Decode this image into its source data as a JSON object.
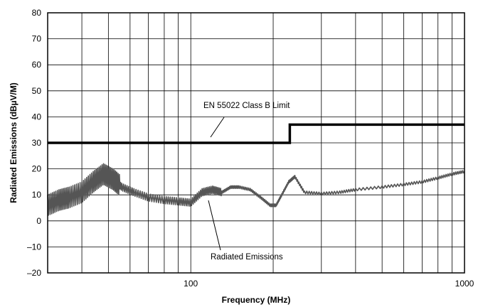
{
  "chart_data": {
    "type": "line",
    "title": "",
    "xlabel": "Frequency (MHz)",
    "ylabel": "Radiated Emissions (dBµV/M)",
    "x_scale": "log",
    "xlim": [
      30,
      1000
    ],
    "ylim": [
      -20,
      80
    ],
    "grid": true,
    "x_tick_labels": [
      "100",
      "1000"
    ],
    "x_ticks": [
      100,
      1000
    ],
    "y_ticks": [
      -20,
      -10,
      0,
      10,
      20,
      30,
      40,
      50,
      60,
      70,
      80
    ],
    "y_tick_labels": [
      "–20",
      "–10",
      "0",
      "10",
      "20",
      "30",
      "40",
      "50",
      "60",
      "70",
      "80"
    ],
    "series": [
      {
        "name": "EN 55022 Class B Limit",
        "color": "#000000",
        "x": [
          30,
          230,
          230,
          1000
        ],
        "y": [
          30,
          30,
          37,
          37
        ]
      },
      {
        "name": "Radiated Emissions",
        "color": "#555555",
        "x": [
          30,
          33,
          36,
          40,
          44,
          48,
          52,
          56,
          62,
          70,
          80,
          90,
          100,
          110,
          120,
          130,
          140,
          150,
          165,
          180,
          195,
          205,
          215,
          228,
          240,
          260,
          300,
          350,
          400,
          500,
          600,
          700,
          800,
          900,
          1000
        ],
        "y": [
          6,
          8,
          9,
          11,
          15,
          18,
          16,
          13,
          11,
          9,
          8,
          7.5,
          7,
          11,
          12,
          11,
          13,
          13,
          12,
          9,
          6,
          6,
          10,
          15,
          17,
          11,
          10.5,
          11,
          12,
          13,
          14,
          15,
          16.5,
          18,
          19
        ]
      }
    ],
    "annotations": [
      "EN 55022 Class B Limit",
      "Radiated Emissions"
    ]
  }
}
